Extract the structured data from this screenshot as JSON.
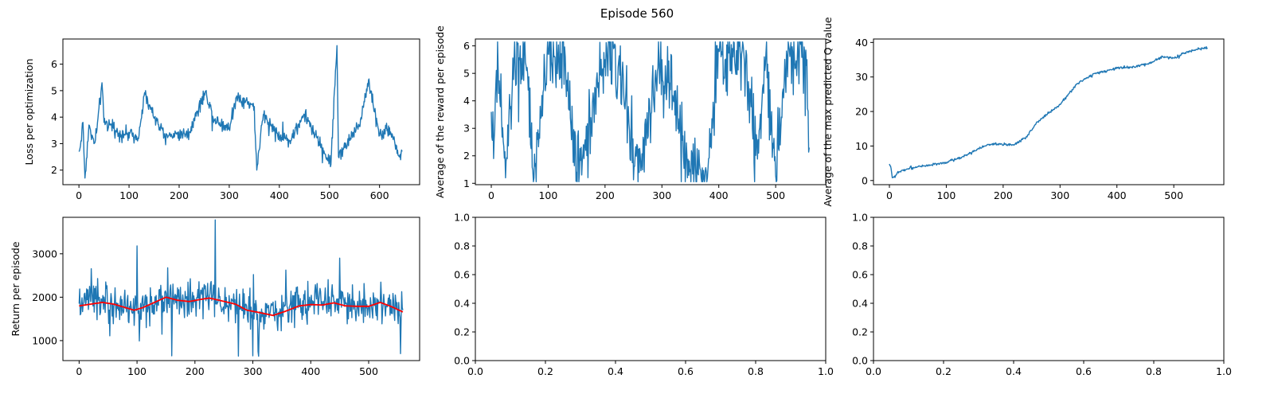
{
  "figure": {
    "title": "Episode 560"
  },
  "colors": {
    "primary": "#1f77b4",
    "moving_average": "#ff0000",
    "axis": "#000000"
  },
  "chart_data": [
    {
      "type": "line",
      "xlabel": "",
      "ylabel": "Loss per optimization",
      "xlim": [
        -32,
        680
      ],
      "ylim": [
        1.45,
        6.95
      ],
      "xticks": [
        0,
        100,
        200,
        300,
        400,
        500,
        600
      ],
      "yticks": [
        2,
        3,
        4,
        5,
        6
      ],
      "n_points": 646,
      "series": [
        {
          "generated_from_keypoints": true,
          "baseline": 2.85,
          "jitter": 0.25,
          "keypoints": [
            [
              0,
              2.7
            ],
            [
              3,
              2.9
            ],
            [
              8,
              3.8
            ],
            [
              12,
              1.7
            ],
            [
              20,
              3.7
            ],
            [
              30,
              3.0
            ],
            [
              35,
              3.4
            ],
            [
              46,
              5.3
            ],
            [
              50,
              3.8
            ],
            [
              62,
              3.7
            ],
            [
              80,
              3.4
            ],
            [
              120,
              3.3
            ],
            [
              130,
              4.8
            ],
            [
              170,
              3.3
            ],
            [
              220,
              3.4
            ],
            [
              250,
              4.9
            ],
            [
              255,
              4.8
            ],
            [
              270,
              3.9
            ],
            [
              300,
              3.6
            ],
            [
              315,
              4.8
            ],
            [
              350,
              4.4
            ],
            [
              355,
              2.0
            ],
            [
              368,
              4.1
            ],
            [
              400,
              3.3
            ],
            [
              420,
              3.1
            ],
            [
              450,
              4.1
            ],
            [
              503,
              2.2
            ],
            [
              510,
              5.0
            ],
            [
              515,
              6.7
            ],
            [
              518,
              2.5
            ],
            [
              540,
              3.2
            ],
            [
              560,
              3.7
            ],
            [
              578,
              5.4
            ],
            [
              600,
              3.3
            ],
            [
              620,
              3.6
            ],
            [
              640,
              2.5
            ],
            [
              645,
              2.7
            ]
          ],
          "values": []
        }
      ]
    },
    {
      "type": "line",
      "xlabel": "",
      "ylabel": "Average of the reward per episode",
      "xlim": [
        -28,
        588
      ],
      "ylim": [
        0.95,
        6.25
      ],
      "xticks": [
        0,
        100,
        200,
        300,
        400,
        500
      ],
      "yticks": [
        1,
        2,
        3,
        4,
        5,
        6
      ],
      "n_points": 560,
      "series": [
        {
          "generated_from_keypoints": true,
          "baseline": 3.6,
          "jitter": 1.3,
          "keypoints": [
            [
              0,
              3.6
            ],
            [
              4,
              1.9
            ],
            [
              8,
              4.6
            ],
            [
              12,
              5.2
            ],
            [
              25,
              1.2
            ],
            [
              40,
              5.5
            ],
            [
              60,
              5.4
            ],
            [
              75,
              1.2
            ],
            [
              100,
              5.7
            ],
            [
              130,
              5.6
            ],
            [
              150,
              1.4
            ],
            [
              200,
              5.5
            ],
            [
              215,
              5.9
            ],
            [
              260,
              1.4
            ],
            [
              300,
              5.5
            ],
            [
              350,
              1.5
            ],
            [
              380,
              1.2
            ],
            [
              400,
              5.8
            ],
            [
              440,
              5.7
            ],
            [
              470,
              2.1
            ],
            [
              480,
              5.6
            ],
            [
              500,
              1.3
            ],
            [
              520,
              5.6
            ],
            [
              540,
              5.7
            ],
            [
              555,
              5.5
            ],
            [
              559,
              2.3
            ]
          ],
          "values": []
        }
      ]
    },
    {
      "type": "line",
      "xlabel": "",
      "ylabel": "Average of the max predicted Q value",
      "xlim": [
        -28,
        588
      ],
      "ylim": [
        -1.2,
        41
      ],
      "xticks": [
        0,
        100,
        200,
        300,
        400,
        500
      ],
      "yticks": [
        0,
        10,
        20,
        30,
        40
      ],
      "n_points": 560,
      "series": [
        {
          "generated_from_keypoints": true,
          "baseline": 0,
          "jitter": 0.35,
          "keypoints": [
            [
              0,
              4.8
            ],
            [
              3,
              3.5
            ],
            [
              5,
              0.8
            ],
            [
              10,
              0.9
            ],
            [
              15,
              2.6
            ],
            [
              30,
              3.3
            ],
            [
              50,
              4.0
            ],
            [
              100,
              5.2
            ],
            [
              130,
              7.0
            ],
            [
              160,
              9.5
            ],
            [
              175,
              10.5
            ],
            [
              220,
              10.4
            ],
            [
              240,
              12.5
            ],
            [
              260,
              17.0
            ],
            [
              280,
              19.5
            ],
            [
              300,
              22.0
            ],
            [
              330,
              28.0
            ],
            [
              360,
              31.0
            ],
            [
              400,
              32.5
            ],
            [
              430,
              33.0
            ],
            [
              460,
              34.0
            ],
            [
              480,
              36.0
            ],
            [
              500,
              35.5
            ],
            [
              520,
              37.0
            ],
            [
              540,
              38.0
            ],
            [
              559,
              38.5
            ]
          ],
          "values": []
        }
      ]
    },
    {
      "type": "line",
      "xlabel": "",
      "ylabel": "Return per episode",
      "xlim": [
        -28,
        588
      ],
      "ylim": [
        540,
        3840
      ],
      "xticks": [
        0,
        100,
        200,
        300,
        400,
        500
      ],
      "yticks": [
        1000,
        2000,
        3000
      ],
      "n_points": 560,
      "series": [
        {
          "generated_from_keypoints": true,
          "baseline": 0,
          "jitter": 420,
          "keypoints": [
            [
              0,
              1850
            ],
            [
              20,
              1900
            ],
            [
              40,
              1880
            ],
            [
              60,
              1800
            ],
            [
              80,
              1750
            ],
            [
              100,
              1720
            ],
            [
              120,
              1800
            ],
            [
              140,
              1950
            ],
            [
              160,
              1950
            ],
            [
              180,
              1900
            ],
            [
              200,
              1950
            ],
            [
              220,
              2000
            ],
            [
              240,
              1900
            ],
            [
              260,
              1850
            ],
            [
              280,
              1750
            ],
            [
              300,
              1650
            ],
            [
              320,
              1620
            ],
            [
              340,
              1650
            ],
            [
              360,
              1750
            ],
            [
              380,
              1850
            ],
            [
              400,
              1850
            ],
            [
              420,
              1850
            ],
            [
              440,
              1900
            ],
            [
              460,
              1850
            ],
            [
              480,
              1800
            ],
            [
              500,
              1780
            ],
            [
              520,
              1880
            ],
            [
              540,
              1750
            ],
            [
              559,
              1700
            ]
          ],
          "spikes": [
            [
              235,
              3780
            ],
            [
              100,
              3180
            ],
            [
              300,
              650
            ],
            [
              310,
              640
            ],
            [
              160,
              650
            ],
            [
              450,
              2900
            ],
            [
              555,
              700
            ]
          ],
          "values": []
        },
        {
          "generated_from_keypoints": true,
          "baseline": 0,
          "jitter": 0,
          "keypoints": [
            [
              0,
              1800
            ],
            [
              20,
              1840
            ],
            [
              40,
              1880
            ],
            [
              60,
              1840
            ],
            [
              80,
              1760
            ],
            [
              95,
              1700
            ],
            [
              110,
              1760
            ],
            [
              130,
              1880
            ],
            [
              150,
              2000
            ],
            [
              170,
              1930
            ],
            [
              190,
              1900
            ],
            [
              210,
              1950
            ],
            [
              225,
              1980
            ],
            [
              245,
              1920
            ],
            [
              270,
              1840
            ],
            [
              290,
              1700
            ],
            [
              310,
              1650
            ],
            [
              335,
              1580
            ],
            [
              355,
              1670
            ],
            [
              380,
              1800
            ],
            [
              400,
              1830
            ],
            [
              420,
              1820
            ],
            [
              440,
              1870
            ],
            [
              460,
              1800
            ],
            [
              480,
              1790
            ],
            [
              500,
              1790
            ],
            [
              520,
              1880
            ],
            [
              540,
              1780
            ],
            [
              559,
              1660
            ]
          ],
          "values": []
        }
      ]
    },
    {
      "type": "line",
      "xlabel": "",
      "ylabel": "",
      "xlim": [
        0,
        1
      ],
      "ylim": [
        0,
        1
      ],
      "xticks": [
        0.0,
        0.2,
        0.4,
        0.6,
        0.8,
        1.0
      ],
      "yticks": [
        0.0,
        0.2,
        0.4,
        0.6,
        0.8,
        1.0
      ],
      "xtick_labels": [
        "0.0",
        "0.2",
        "0.4",
        "0.6",
        "0.8",
        "1.0"
      ],
      "ytick_labels": [
        "0.0",
        "0.2",
        "0.4",
        "0.6",
        "0.8",
        "1.0"
      ],
      "series": []
    },
    {
      "type": "line",
      "xlabel": "",
      "ylabel": "",
      "xlim": [
        0,
        1
      ],
      "ylim": [
        0,
        1
      ],
      "xticks": [
        0.0,
        0.2,
        0.4,
        0.6,
        0.8,
        1.0
      ],
      "yticks": [
        0.0,
        0.2,
        0.4,
        0.6,
        0.8,
        1.0
      ],
      "xtick_labels": [
        "0.0",
        "0.2",
        "0.4",
        "0.6",
        "0.8",
        "1.0"
      ],
      "ytick_labels": [
        "0.0",
        "0.2",
        "0.4",
        "0.6",
        "0.8",
        "1.0"
      ],
      "series": []
    }
  ]
}
